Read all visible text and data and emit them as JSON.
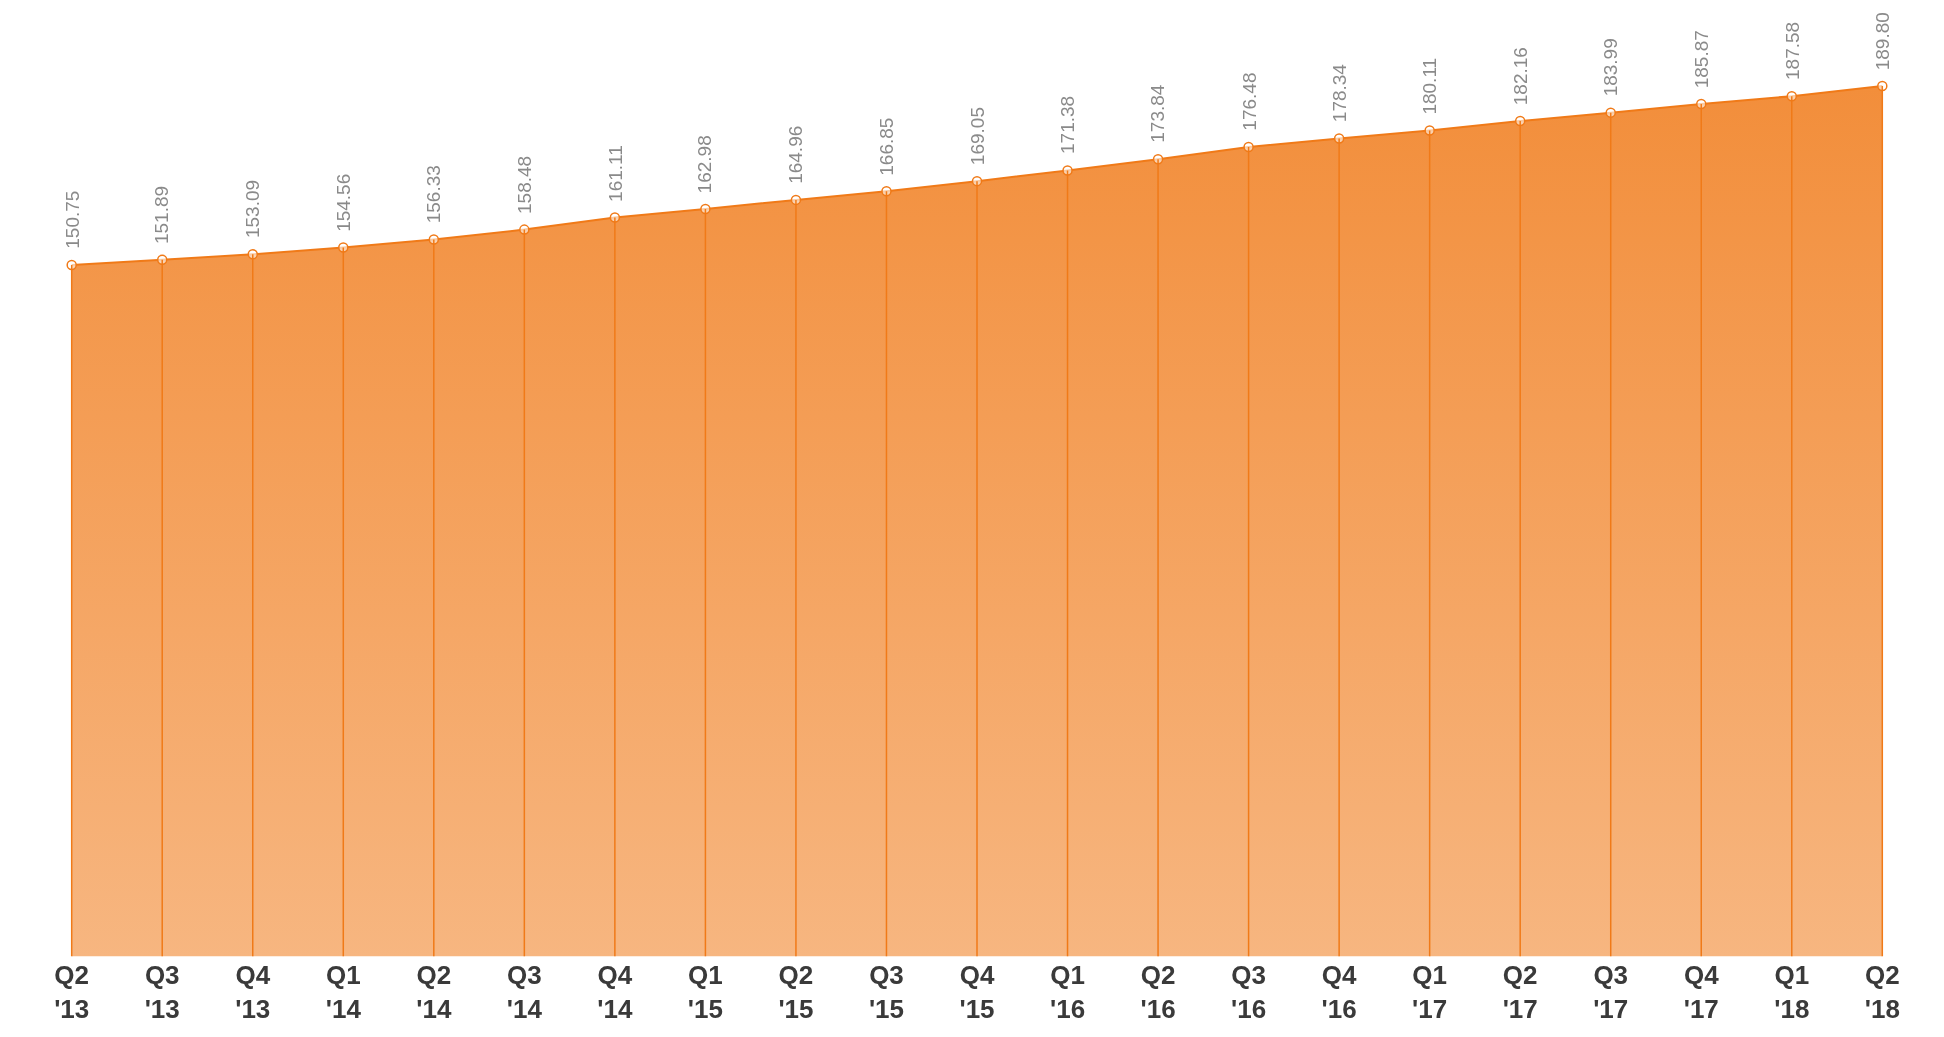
{
  "chart_data": {
    "type": "area",
    "categories": [
      "Q2\n'13",
      "Q3\n'13",
      "Q4\n'13",
      "Q1\n'14",
      "Q2\n'14",
      "Q3\n'14",
      "Q4\n'14",
      "Q1\n'15",
      "Q2\n'15",
      "Q3\n'15",
      "Q4\n'15",
      "Q1\n'16",
      "Q2\n'16",
      "Q3\n'16",
      "Q4\n'16",
      "Q1\n'17",
      "Q2\n'17",
      "Q3\n'17",
      "Q4\n'17",
      "Q1\n'18",
      "Q2\n'18"
    ],
    "values": [
      150.75,
      151.89,
      153.09,
      154.56,
      156.33,
      158.48,
      161.11,
      162.98,
      164.96,
      166.85,
      169.05,
      171.38,
      173.84,
      176.48,
      178.34,
      180.11,
      182.16,
      183.99,
      185.87,
      187.58,
      189.8
    ],
    "value_labels": [
      "150.75",
      "151.89",
      "153.09",
      "154.56",
      "156.33",
      "158.48",
      "161.11",
      "162.98",
      "164.96",
      "166.85",
      "169.05",
      "171.38",
      "173.84",
      "176.48",
      "178.34",
      "180.11",
      "182.16",
      "183.99",
      "185.87",
      "187.58",
      "189.80"
    ],
    "color": "#f07a18",
    "marker": "circle",
    "grid": "x",
    "legend": false
  }
}
